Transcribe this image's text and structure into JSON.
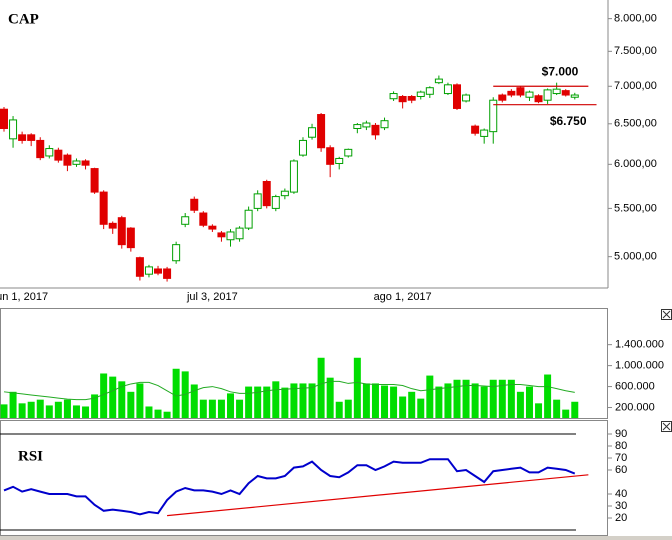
{
  "chart_data": [
    {
      "type": "candlestick",
      "title": "CAP",
      "log_scale": true,
      "categories": [
        null,
        null,
        "un 1, 2017",
        null,
        null,
        null,
        null,
        null,
        null,
        null,
        null,
        null,
        null,
        null,
        null,
        null,
        null,
        null,
        null,
        null,
        null,
        null,
        null,
        "jul 3, 2017",
        null,
        null,
        null,
        null,
        null,
        null,
        null,
        null,
        null,
        null,
        null,
        null,
        null,
        null,
        null,
        null,
        null,
        null,
        null,
        null,
        "ago 1, 2017",
        null,
        null,
        null,
        null,
        null,
        null,
        null,
        null,
        null,
        null,
        null,
        null,
        null,
        null,
        null,
        null,
        null,
        null,
        null
      ],
      "open": [
        6690,
        6310,
        6360,
        6360,
        6290,
        6100,
        6170,
        6110,
        6000,
        6040,
        5950,
        5680,
        5340,
        5400,
        5290,
        4990,
        4830,
        4880,
        4880,
        4960,
        5330,
        5600,
        5450,
        5310,
        5240,
        5170,
        5180,
        5290,
        5500,
        5800,
        5500,
        5640,
        5680,
        6110,
        6330,
        6620,
        6200,
        6010,
        6100,
        6440,
        6460,
        6480,
        6450,
        6830,
        6860,
        6860,
        6860,
        6890,
        7050,
        6900,
        7020,
        6800,
        6470,
        6340,
        6400,
        6880,
        6930,
        6980,
        6850,
        6870,
        6810,
        6900,
        6940,
        6850
      ],
      "high": [
        6720,
        6600,
        6400,
        6380,
        6330,
        6230,
        6200,
        6130,
        6070,
        6060,
        5960,
        5700,
        5360,
        5420,
        5300,
        5000,
        4920,
        4910,
        4900,
        5150,
        5450,
        5630,
        5470,
        5330,
        5260,
        5280,
        5310,
        5520,
        5700,
        5820,
        5650,
        5720,
        6060,
        6330,
        6500,
        6640,
        6230,
        6090,
        6190,
        6510,
        6540,
        6510,
        6580,
        6930,
        6880,
        6880,
        6940,
        7000,
        7150,
        7050,
        7040,
        6900,
        6490,
        6440,
        6850,
        6900,
        6960,
        7000,
        6940,
        6890,
        6970,
        7050,
        6960,
        6910
      ],
      "low": [
        6400,
        6200,
        6250,
        6220,
        6050,
        6070,
        6020,
        5920,
        5970,
        5940,
        5660,
        5280,
        5230,
        5080,
        5050,
        4770,
        4800,
        4820,
        4760,
        4930,
        5300,
        5450,
        5300,
        5250,
        5150,
        5100,
        5150,
        5270,
        5470,
        5500,
        5470,
        5600,
        5660,
        6090,
        6300,
        6150,
        5850,
        5940,
        6080,
        6380,
        6420,
        6300,
        6420,
        6800,
        6700,
        6770,
        6820,
        6840,
        7030,
        6880,
        6680,
        6780,
        6350,
        6250,
        6250,
        6780,
        6850,
        6850,
        6800,
        6770,
        6760,
        6880,
        6860,
        6820
      ],
      "close": [
        6440,
        6550,
        6290,
        6290,
        6080,
        6190,
        6050,
        5990,
        6040,
        5990,
        5680,
        5330,
        5290,
        5120,
        5090,
        4810,
        4900,
        4840,
        4790,
        5120,
        5410,
        5480,
        5320,
        5280,
        5200,
        5250,
        5290,
        5480,
        5660,
        5530,
        5630,
        5690,
        6040,
        6290,
        6450,
        6200,
        6000,
        6070,
        6180,
        6490,
        6510,
        6360,
        6540,
        6900,
        6790,
        6810,
        6920,
        6980,
        7100,
        7020,
        6700,
        6880,
        6380,
        6420,
        6810,
        6810,
        6880,
        6880,
        6920,
        6790,
        6950,
        6960,
        6880,
        6880
      ],
      "up_color": "#00a000",
      "down_color": "#e00000",
      "ylim": [
        4700,
        8300
      ],
      "yticks": [
        {
          "value": 5000,
          "label": "5.000,00"
        },
        {
          "value": 5500,
          "label": "5.500,00"
        },
        {
          "value": 6000,
          "label": "6.000,00"
        },
        {
          "value": 6500,
          "label": "6.500,00"
        },
        {
          "value": 7000,
          "label": "7.000,00"
        },
        {
          "value": 7500,
          "label": "7.500,00"
        },
        {
          "value": 8000,
          "label": "8.000,00"
        }
      ],
      "annotations": [
        {
          "label": "$7.000",
          "value": 7000,
          "x": [
            54,
            64.5
          ]
        },
        {
          "label": "$6.750",
          "value": 6750,
          "x": [
            54,
            65.4
          ]
        }
      ],
      "annotation_color": "#d00000"
    },
    {
      "type": "bar",
      "values": [
        260000,
        500000,
        280000,
        310000,
        350000,
        240000,
        310000,
        350000,
        240000,
        220000,
        450000,
        850000,
        790000,
        700000,
        500000,
        660000,
        220000,
        160000,
        120000,
        940000,
        890000,
        640000,
        350000,
        350000,
        350000,
        470000,
        350000,
        600000,
        600000,
        600000,
        700000,
        580000,
        660000,
        660000,
        660000,
        1150000,
        770000,
        310000,
        350000,
        1150000,
        660000,
        660000,
        620000,
        600000,
        410000,
        500000,
        370000,
        810000,
        600000,
        660000,
        730000,
        730000,
        660000,
        600000,
        730000,
        730000,
        730000,
        500000,
        600000,
        280000,
        830000,
        350000,
        160000,
        310000
      ],
      "color": "#00dd00",
      "average": [
        500000,
        480000,
        460000,
        440000,
        420000,
        400000,
        380000,
        360000,
        350000,
        350000,
        380000,
        450000,
        520000,
        600000,
        650000,
        680000,
        680000,
        620000,
        520000,
        420000,
        450000,
        520000,
        580000,
        600000,
        560000,
        500000,
        470000,
        470000,
        490000,
        520000,
        540000,
        550000,
        560000,
        570000,
        580000,
        650000,
        700000,
        700000,
        660000,
        680000,
        650000,
        640000,
        640000,
        640000,
        620000,
        560000,
        520000,
        540000,
        560000,
        580000,
        600000,
        620000,
        620000,
        610000,
        600000,
        620000,
        640000,
        640000,
        620000,
        600000,
        600000,
        560000,
        520000,
        490000
      ],
      "average_color": "#22aa22",
      "ylim": [
        0,
        2100000
      ],
      "yticks": [
        {
          "value": 200000,
          "label": "200.000"
        },
        {
          "value": 600000,
          "label": "600.000"
        },
        {
          "value": 1000000,
          "label": "1.000.000"
        },
        {
          "value": 1400000,
          "label": "1.400.000"
        }
      ]
    },
    {
      "type": "line",
      "title": "RSI",
      "values": [
        43,
        46,
        42,
        44,
        42,
        40,
        40,
        40,
        38,
        38,
        31,
        26,
        27,
        26,
        25,
        23,
        25,
        24,
        35,
        42,
        45,
        43,
        43,
        42,
        40,
        43,
        40,
        49,
        55,
        53,
        53,
        55,
        62,
        63,
        67,
        60,
        55,
        54,
        58,
        64,
        64,
        60,
        63,
        67,
        66,
        66,
        66,
        69,
        69,
        69,
        59,
        60,
        55,
        50,
        59,
        60,
        61,
        62,
        58,
        58,
        62,
        61,
        60,
        57
      ],
      "color": "#0000cc",
      "ylim": [
        5,
        100
      ],
      "yticks": [
        20,
        30,
        40,
        60,
        70,
        80,
        90
      ],
      "hlines": [
        90,
        10
      ],
      "trendline": {
        "x": [
          18,
          64.5
        ],
        "y": [
          22,
          56
        ],
        "color": "#e00000"
      }
    }
  ]
}
